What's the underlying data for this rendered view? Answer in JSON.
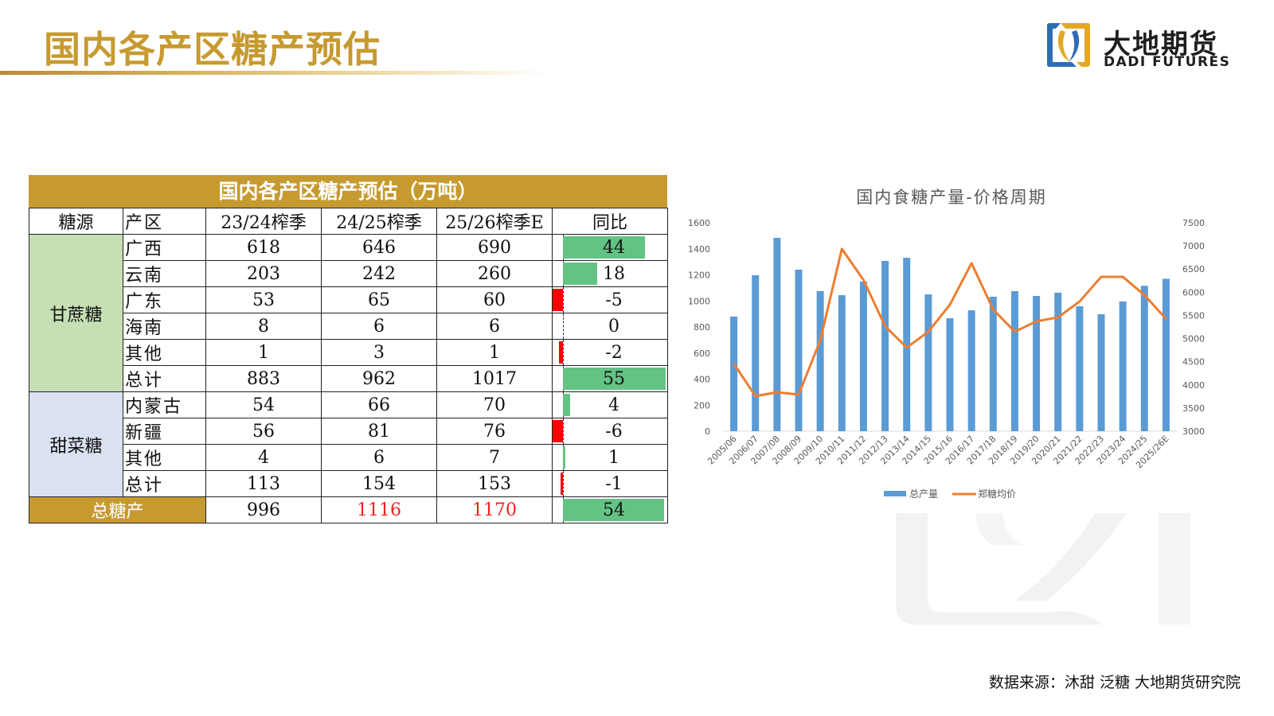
{
  "header": {
    "title": "国内各产区糖产预估",
    "logo_cn": "大地期货",
    "logo_en": "DADI FUTURES"
  },
  "table": {
    "title": "国内各产区糖产预估（万吨）",
    "columns": [
      "糖源",
      "产区",
      "23/24榨季",
      "24/25榨季",
      "25/26榨季E",
      "同比"
    ],
    "groups": [
      {
        "name": "甘蔗糖",
        "rows": [
          {
            "region": "广西",
            "v2324": "618",
            "v2425": "646",
            "v2526": "690",
            "yoy": "44"
          },
          {
            "region": "云南",
            "v2324": "203",
            "v2425": "242",
            "v2526": "260",
            "yoy": "18"
          },
          {
            "region": "广东",
            "v2324": "53",
            "v2425": "65",
            "v2526": "60",
            "yoy": "-5"
          },
          {
            "region": "海南",
            "v2324": "8",
            "v2425": "6",
            "v2526": "6",
            "yoy": "0"
          },
          {
            "region": "其他",
            "v2324": "1",
            "v2425": "3",
            "v2526": "1",
            "yoy": "-2"
          },
          {
            "region": "总计",
            "v2324": "883",
            "v2425": "962",
            "v2526": "1017",
            "yoy": "55"
          }
        ]
      },
      {
        "name": "甜菜糖",
        "rows": [
          {
            "region": "内蒙古",
            "v2324": "54",
            "v2425": "66",
            "v2526": "70",
            "yoy": "4"
          },
          {
            "region": "新疆",
            "v2324": "56",
            "v2425": "81",
            "v2526": "76",
            "yoy": "-6"
          },
          {
            "region": "其他",
            "v2324": "4",
            "v2425": "6",
            "v2526": "7",
            "yoy": "1"
          },
          {
            "region": "总计",
            "v2324": "113",
            "v2425": "154",
            "v2526": "153",
            "yoy": "-1"
          }
        ]
      }
    ],
    "grand_total": {
      "label": "总糖产",
      "v2324": "996",
      "v2425": "1116",
      "v2526": "1170",
      "yoy": "54"
    },
    "colors": {
      "gold": "#C79A30",
      "cane_bg": "#C6DFB4",
      "beet_bg": "#D9E1F2",
      "pos_bar": "#63C384",
      "neg_bar": "#FF0000",
      "highlight_text": "#F02020"
    }
  },
  "chart_data": {
    "type": "bar",
    "title": "国内食糖产量-价格周期",
    "categories": [
      "2005/06",
      "2006/07",
      "2007/08",
      "2008/09",
      "2009/10",
      "2010/11",
      "2011/12",
      "2012/13",
      "2013/14",
      "2014/15",
      "2015/16",
      "2016/17",
      "2017/18",
      "2018/19",
      "2019/20",
      "2020/21",
      "2021/22",
      "2022/23",
      "2023/24",
      "2024/25",
      "2025/26E"
    ],
    "series": [
      {
        "name": "总产量",
        "type": "bar",
        "axis": "left",
        "color": "#5B9BD5",
        "values": [
          880,
          1197,
          1484,
          1240,
          1075,
          1044,
          1148,
          1307,
          1331,
          1050,
          867,
          928,
          1032,
          1075,
          1038,
          1063,
          959,
          898,
          996,
          1116,
          1170
        ]
      },
      {
        "name": "郑糖均价",
        "type": "line",
        "axis": "right",
        "color": "#ED7D31",
        "values": [
          4460,
          3756,
          3842,
          3790,
          4960,
          6935,
          6265,
          5268,
          4804,
          5148,
          5732,
          6625,
          5629,
          5148,
          5371,
          5457,
          5800,
          6333,
          6333,
          5938,
          5423
        ]
      }
    ],
    "y_left": {
      "min": 0,
      "max": 1600,
      "ticks": [
        0,
        200,
        400,
        600,
        800,
        1000,
        1200,
        1400,
        1600
      ]
    },
    "y_right": {
      "min": 3000,
      "max": 7500,
      "ticks": [
        3000,
        3500,
        4000,
        4500,
        5000,
        5500,
        6000,
        6500,
        7000,
        7500
      ]
    },
    "xlabel": "",
    "ylabel": "",
    "grid": false,
    "legend_position": "bottom"
  },
  "footer": {
    "source": "数据来源：沐甜 泛糖 大地期货研究院"
  }
}
